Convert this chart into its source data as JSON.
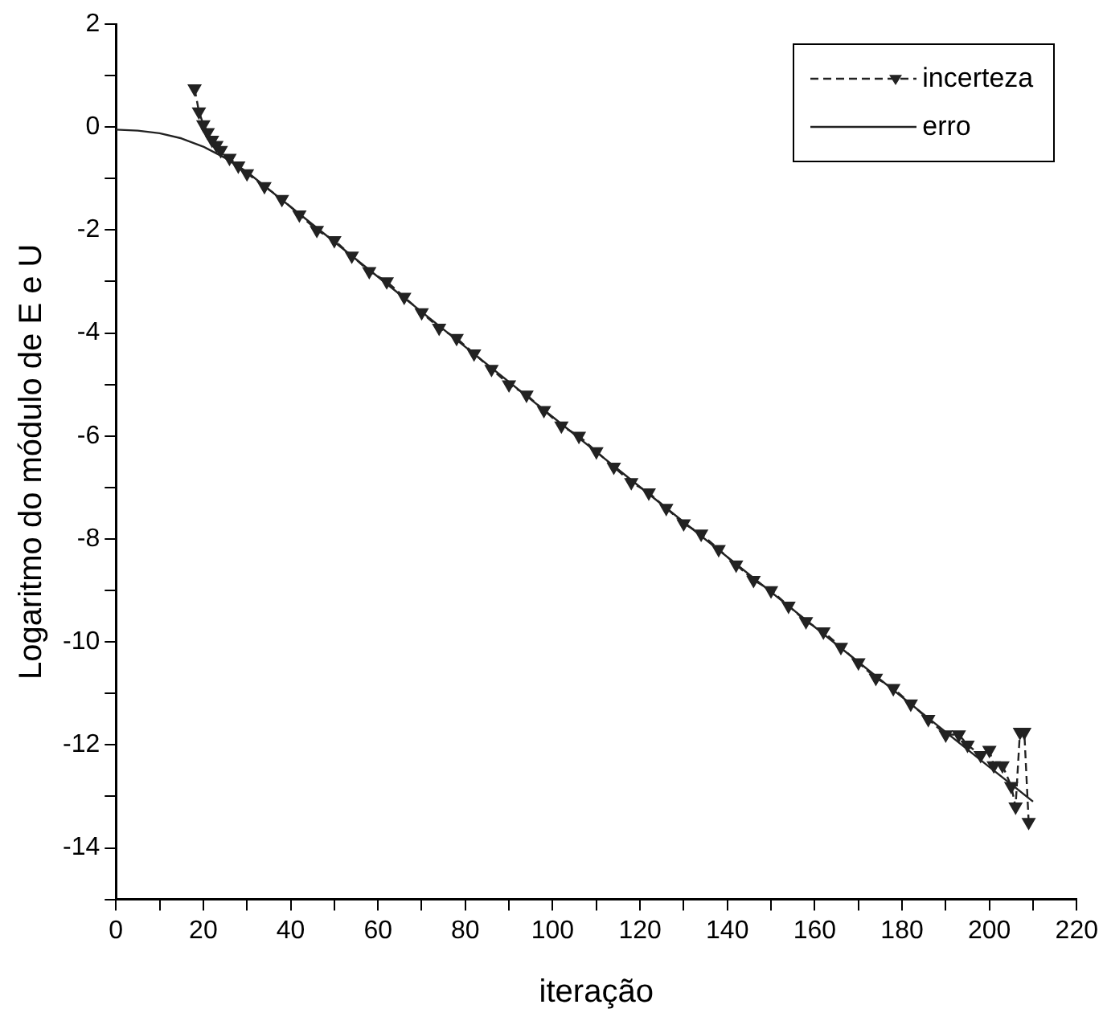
{
  "chart_data": {
    "type": "line",
    "xlabel": "iteração",
    "ylabel": "Logaritmo do módulo de E e U",
    "xlim": [
      0,
      220
    ],
    "xticks": [
      0,
      {
        "value": 10,
        "label": null
      },
      20,
      {
        "value": 30,
        "label": null
      },
      40,
      {
        "value": 50,
        "label": null
      },
      60,
      {
        "value": 70,
        "label": null
      },
      80,
      {
        "value": 90,
        "label": null
      },
      100,
      {
        "value": 110,
        "label": null
      },
      120,
      {
        "value": 130,
        "label": null
      },
      140,
      {
        "value": 150,
        "label": null
      },
      160,
      {
        "value": 170,
        "label": null
      },
      180,
      {
        "value": 190,
        "label": null
      },
      200,
      {
        "value": 210,
        "label": null
      },
      220
    ],
    "ylim": [
      -15,
      2
    ],
    "yticks": [
      {
        "value": -15,
        "label": null
      },
      -14,
      {
        "value": -13,
        "label": null
      },
      -12,
      {
        "value": -11,
        "label": null
      },
      -10,
      {
        "value": -9,
        "label": null
      },
      -8,
      {
        "value": -7,
        "label": null
      },
      -6,
      {
        "value": -5,
        "label": null
      },
      -4,
      {
        "value": -3,
        "label": null
      },
      -2,
      {
        "value": -1,
        "label": null
      },
      0,
      {
        "value": 1,
        "label": null
      },
      2
    ],
    "legend": "top right",
    "grid": false,
    "series": [
      {
        "name": "incerteza",
        "color": "#222222",
        "marker": "triangle",
        "line_style": "dashed",
        "x": [
          18,
          19,
          20,
          21,
          22,
          23,
          24,
          26,
          28,
          30,
          34,
          38,
          42,
          46,
          50,
          54,
          58,
          62,
          66,
          70,
          74,
          78,
          82,
          86,
          90,
          94,
          98,
          102,
          106,
          110,
          114,
          118,
          122,
          126,
          130,
          134,
          138,
          142,
          146,
          150,
          154,
          158,
          162,
          166,
          170,
          174,
          178,
          182,
          186,
          190,
          193,
          195,
          198,
          200,
          201,
          203,
          205,
          206,
          207,
          208,
          209
        ],
        "values": [
          0.75,
          0.3,
          0.05,
          -0.1,
          -0.25,
          -0.35,
          -0.45,
          -0.6,
          -0.75,
          -0.9,
          -1.15,
          -1.4,
          -1.7,
          -2.0,
          -2.2,
          -2.5,
          -2.8,
          -3.0,
          -3.3,
          -3.6,
          -3.9,
          -4.1,
          -4.4,
          -4.7,
          -5.0,
          -5.2,
          -5.5,
          -5.8,
          -6.0,
          -6.3,
          -6.6,
          -6.9,
          -7.1,
          -7.4,
          -7.7,
          -7.9,
          -8.2,
          -8.5,
          -8.8,
          -9.0,
          -9.3,
          -9.6,
          -9.8,
          -10.1,
          -10.4,
          -10.7,
          -10.9,
          -11.2,
          -11.5,
          -11.8,
          -11.8,
          -12.0,
          -12.2,
          -12.1,
          -12.4,
          -12.4,
          -12.8,
          -13.2,
          -11.75,
          -11.75,
          -13.5
        ]
      },
      {
        "name": "erro",
        "color": "#222222",
        "marker": "none",
        "line_style": "solid",
        "x": [
          0,
          5,
          10,
          15,
          20,
          25,
          30,
          40,
          100,
          160,
          200,
          210
        ],
        "values": [
          -0.05,
          -0.07,
          -0.12,
          -0.22,
          -0.38,
          -0.6,
          -0.87,
          -1.55,
          -5.63,
          -9.71,
          -12.43,
          -13.1
        ]
      }
    ]
  }
}
